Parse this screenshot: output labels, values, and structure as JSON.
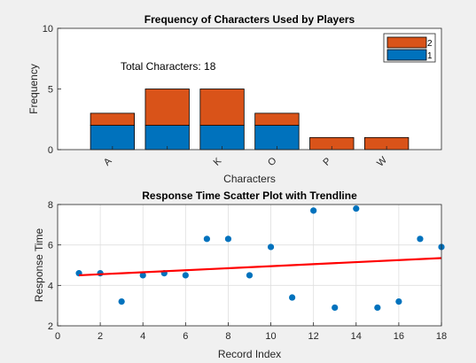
{
  "chart_data": [
    {
      "type": "bar",
      "stacked": true,
      "title": "Frequency of Characters Used by Players",
      "xlabel": "Characters",
      "ylabel": "Frequency",
      "ylim": [
        0,
        10
      ],
      "yticks": [
        0,
        5,
        10
      ],
      "categories": [
        "A",
        "",
        "K",
        "O",
        "P",
        "W"
      ],
      "series": [
        {
          "name": "1",
          "color": "#0072BD",
          "values": [
            2,
            2,
            2,
            2,
            0,
            0
          ]
        },
        {
          "name": "2",
          "color": "#D95319",
          "values": [
            1,
            3,
            3,
            1,
            1,
            1
          ]
        }
      ],
      "annotation": "Total Characters: 18",
      "legend": "top-right",
      "grid": false
    },
    {
      "type": "scatter",
      "title": "Response Time Scatter Plot with Trendline",
      "xlabel": "Record Index",
      "ylabel": "Response Time",
      "xlim": [
        0,
        18
      ],
      "ylim": [
        2,
        8
      ],
      "xticks": [
        0,
        2,
        4,
        6,
        8,
        10,
        12,
        14,
        16,
        18
      ],
      "yticks": [
        2,
        4,
        6,
        8
      ],
      "grid": true,
      "points": {
        "color": "#0072BD",
        "x": [
          1,
          2,
          3,
          4,
          5,
          6,
          7,
          8,
          9,
          10,
          11,
          12,
          13,
          14,
          15,
          16,
          17,
          18
        ],
        "y": [
          4.6,
          4.6,
          3.2,
          4.5,
          4.6,
          4.5,
          6.3,
          6.3,
          4.5,
          5.9,
          3.4,
          7.7,
          2.9,
          7.8,
          2.9,
          3.2,
          6.3,
          5.9
        ]
      },
      "trendline": {
        "color": "#FF0000",
        "x": [
          1,
          18
        ],
        "y": [
          4.5,
          5.35
        ]
      }
    }
  ]
}
